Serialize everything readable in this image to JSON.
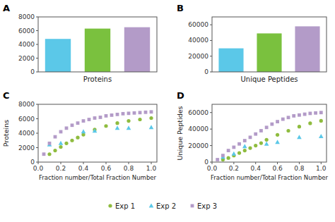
{
  "chart_data": [
    {
      "type": "bar",
      "title": "A",
      "categories": [
        null,
        null,
        null
      ],
      "values": [
        4800,
        6300,
        6500
      ],
      "colors": [
        "#5bc8e8",
        "#7ac13e",
        "#b39bc8"
      ],
      "xlabel": "Proteins",
      "ylim": [
        0,
        8000
      ],
      "yticks": [
        0,
        2000,
        4000,
        6000,
        8000
      ],
      "grid": false,
      "tick_labels": "y"
    },
    {
      "type": "bar",
      "title": "B",
      "categories": [
        null,
        null,
        null
      ],
      "values": [
        30000,
        49000,
        58000
      ],
      "colors": [
        "#5bc8e8",
        "#7ac13e",
        "#b39bc8"
      ],
      "xlabel": "Unique Peptides",
      "ylim": [
        0,
        70000
      ],
      "yticks": [
        0,
        20000,
        40000,
        60000
      ],
      "grid": false,
      "tick_labels": "y"
    },
    {
      "type": "scatter",
      "title": "C",
      "xlabel": "Fraction number/Total Fraction Number",
      "ylabel": "Proteins",
      "series": [
        {
          "name": "Exp 1",
          "color": "#8fbc3f",
          "marker": "circle",
          "x": [
            0.1,
            0.15,
            0.2,
            0.25,
            0.3,
            0.35,
            0.4,
            0.5,
            0.6,
            0.7,
            0.8,
            0.9,
            1.0
          ],
          "values": [
            1100,
            1600,
            2100,
            2600,
            3000,
            3400,
            3800,
            4500,
            5000,
            5400,
            5700,
            5900,
            6100
          ]
        },
        {
          "name": "Exp 2",
          "color": "#5bc8e8",
          "marker": "triangle",
          "x": [
            0.1,
            0.2,
            0.4,
            0.5,
            0.7,
            0.8,
            1.0
          ],
          "values": [
            2400,
            2600,
            4200,
            4300,
            4700,
            4700,
            4800
          ]
        },
        {
          "name": "Exp 3",
          "color": "#b39bc8",
          "marker": "square",
          "x": [
            0.05,
            0.1,
            0.15,
            0.2,
            0.25,
            0.3,
            0.35,
            0.4,
            0.45,
            0.5,
            0.55,
            0.6,
            0.65,
            0.7,
            0.75,
            0.8,
            0.85,
            0.9,
            0.95,
            1.0
          ],
          "values": [
            1100,
            2600,
            3500,
            4200,
            4700,
            5100,
            5400,
            5700,
            5900,
            6100,
            6200,
            6400,
            6500,
            6600,
            6700,
            6750,
            6800,
            6850,
            6900,
            6950
          ]
        }
      ],
      "xlim": [
        0,
        1.05
      ],
      "xticks": [
        {
          "value": 0,
          "label": "0.0"
        },
        0.2,
        0.4,
        0.6,
        0.8,
        {
          "value": 1.0,
          "label": "1.0"
        }
      ],
      "ylim": [
        0,
        8000
      ],
      "yticks": [
        0,
        2000,
        4000,
        6000,
        8000
      ],
      "grid": false,
      "legend": "bottom"
    },
    {
      "type": "scatter",
      "title": "D",
      "xlabel": "Fraction number/Total Fraction Number",
      "ylabel": "Unique Peptides",
      "series": [
        {
          "color": "#8fbc3f",
          "marker": "circle",
          "x": [
            0.1,
            0.15,
            0.2,
            0.25,
            0.3,
            0.35,
            0.4,
            0.45,
            0.5,
            0.6,
            0.7,
            0.8,
            0.9,
            1.0
          ],
          "values": [
            3000,
            5000,
            8000,
            11000,
            14000,
            17000,
            20000,
            23000,
            27000,
            33000,
            38000,
            43000,
            47000,
            50000
          ]
        },
        {
          "color": "#5bc8e8",
          "marker": "triangle",
          "x": [
            0.1,
            0.2,
            0.3,
            0.5,
            0.6,
            0.8,
            1.0
          ],
          "values": [
            6000,
            10000,
            19000,
            22000,
            24000,
            30000,
            31000
          ]
        },
        {
          "color": "#b39bc8",
          "marker": "square",
          "x": [
            0.05,
            0.1,
            0.15,
            0.2,
            0.25,
            0.3,
            0.35,
            0.4,
            0.45,
            0.5,
            0.55,
            0.6,
            0.65,
            0.7,
            0.75,
            0.8,
            0.85,
            0.9,
            0.95,
            1.0
          ],
          "values": [
            3000,
            8000,
            14000,
            18000,
            22000,
            26000,
            30000,
            34000,
            38000,
            42000,
            46000,
            49000,
            52000,
            54000,
            56000,
            57000,
            58000,
            59000,
            59500,
            60000
          ]
        }
      ],
      "xlim": [
        0,
        1.05
      ],
      "xticks": [
        {
          "value": 0,
          "label": "0.0"
        },
        0.2,
        0.4,
        0.6,
        0.8,
        {
          "value": 1.0,
          "label": "1.0"
        }
      ],
      "ylim": [
        0,
        70000
      ],
      "yticks": [
        0,
        20000,
        40000,
        60000
      ],
      "grid": false
    }
  ]
}
